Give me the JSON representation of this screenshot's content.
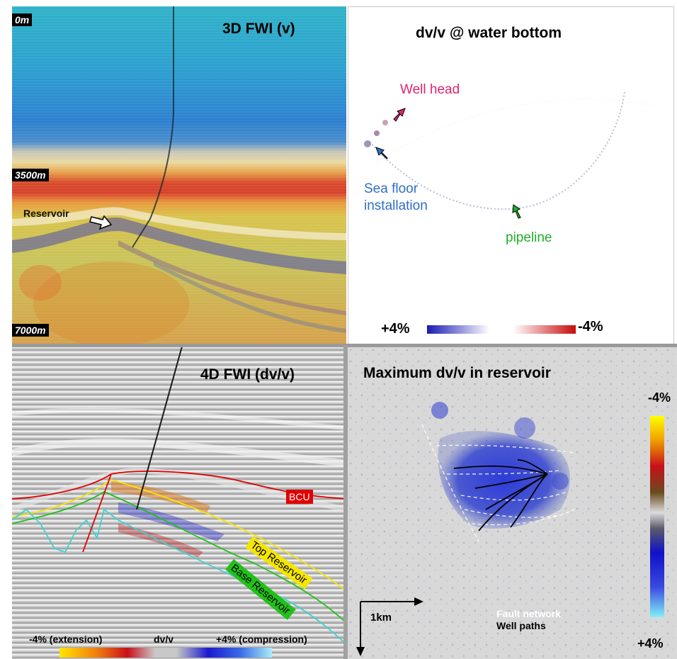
{
  "panels": {
    "fwi_v": {
      "title": "3D FWI (v)",
      "depth_top": "0m",
      "depth_mid": "3500m",
      "depth_bottom": "7000m",
      "reservoir_label": "Reservoir"
    },
    "dvv_water_bottom": {
      "title": "dv/v @ water bottom",
      "well_head_label": "Well head",
      "sea_floor_label_line1": "Sea floor",
      "sea_floor_label_line2": "installation",
      "pipeline_label": "pipeline",
      "scale_left": "+4%",
      "scale_right": "-4%"
    },
    "fwi_4d": {
      "title": "4D FWI (dv/v)",
      "horizon_bcu": "BCU",
      "horizon_top": "Top Reservoir",
      "horizon_base": "Base Reservoir",
      "scale_left": "-4% (extension)",
      "scale_mid": "dv/v",
      "scale_right": "+4% (compression)"
    },
    "max_dvv": {
      "title": "Maximum dv/v in reservoir",
      "colorbar_top": "-4%",
      "colorbar_bottom": "+4%",
      "legend_faults": "Fault network",
      "legend_wells": "Well paths",
      "scale_bar": "1km"
    }
  },
  "colors": {
    "well_head": "#e0236e",
    "sea_floor": "#2f6fc6",
    "pipeline": "#1fae28",
    "bcu": "#e00000",
    "top_reservoir": "#f5e600",
    "base_reservoir": "#22c01a"
  }
}
